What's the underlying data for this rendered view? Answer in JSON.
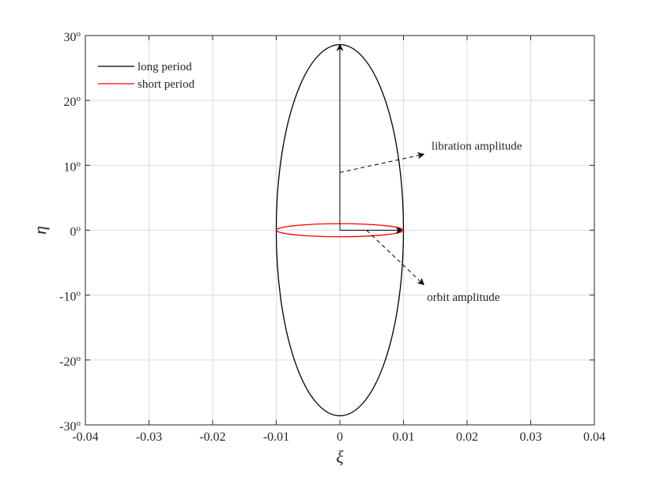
{
  "chart_data": {
    "type": "line",
    "title": "",
    "xlabel": "ξ",
    "ylabel": "η",
    "xlim": [
      -0.04,
      0.04
    ],
    "ylim": [
      -30,
      30
    ],
    "grid": true,
    "legend_placement": "top-left",
    "x_ticks": [
      {
        "value": -0.04,
        "label": "-0.04"
      },
      {
        "value": -0.03,
        "label": "-0.03"
      },
      {
        "value": -0.02,
        "label": "-0.02"
      },
      {
        "value": -0.01,
        "label": "-0.01"
      },
      {
        "value": 0,
        "label": "0"
      },
      {
        "value": 0.01,
        "label": "0.01"
      },
      {
        "value": 0.02,
        "label": "0.02"
      },
      {
        "value": 0.03,
        "label": "0.03"
      },
      {
        "value": 0.04,
        "label": "0.04"
      }
    ],
    "y_ticks": [
      {
        "value": 30,
        "base": "30",
        "sup": "o"
      },
      {
        "value": 20,
        "base": "20",
        "sup": "o"
      },
      {
        "value": 10,
        "base": "10",
        "sup": "o"
      },
      {
        "value": 0,
        "base": "0",
        "sup": "o"
      },
      {
        "value": -10,
        "base": "-10",
        "sup": "o"
      },
      {
        "value": -20,
        "base": "-20",
        "sup": "o"
      },
      {
        "value": -30,
        "base": "-30",
        "sup": "o"
      }
    ],
    "series": [
      {
        "name": "long period",
        "color": "#000000",
        "shape": "ellipse",
        "cx": 0,
        "cy": 0,
        "rx": 0.01,
        "ry": 28.6
      },
      {
        "name": "short period",
        "color": "#ff0000",
        "shape": "ellipse",
        "cx": 0,
        "cy": 0,
        "rx": 0.01,
        "ry": 1.0
      }
    ],
    "annotations": [
      {
        "text": "libration amplitude",
        "vector_from": [
          0,
          0
        ],
        "vector_to": [
          0,
          28.6
        ],
        "pointer_from": [
          0,
          8.9
        ],
        "pointer_to": [
          0.0132,
          11.7
        ],
        "label_at": [
          0.0144,
          12.4
        ]
      },
      {
        "text": "orbit amplitude",
        "vector_from": [
          0,
          0
        ],
        "vector_to": [
          0.0098,
          0
        ],
        "pointer_from": [
          0.0042,
          0
        ],
        "pointer_to": [
          0.0132,
          -8.4
        ],
        "label_at": [
          0.0137,
          -10.9
        ]
      }
    ]
  }
}
